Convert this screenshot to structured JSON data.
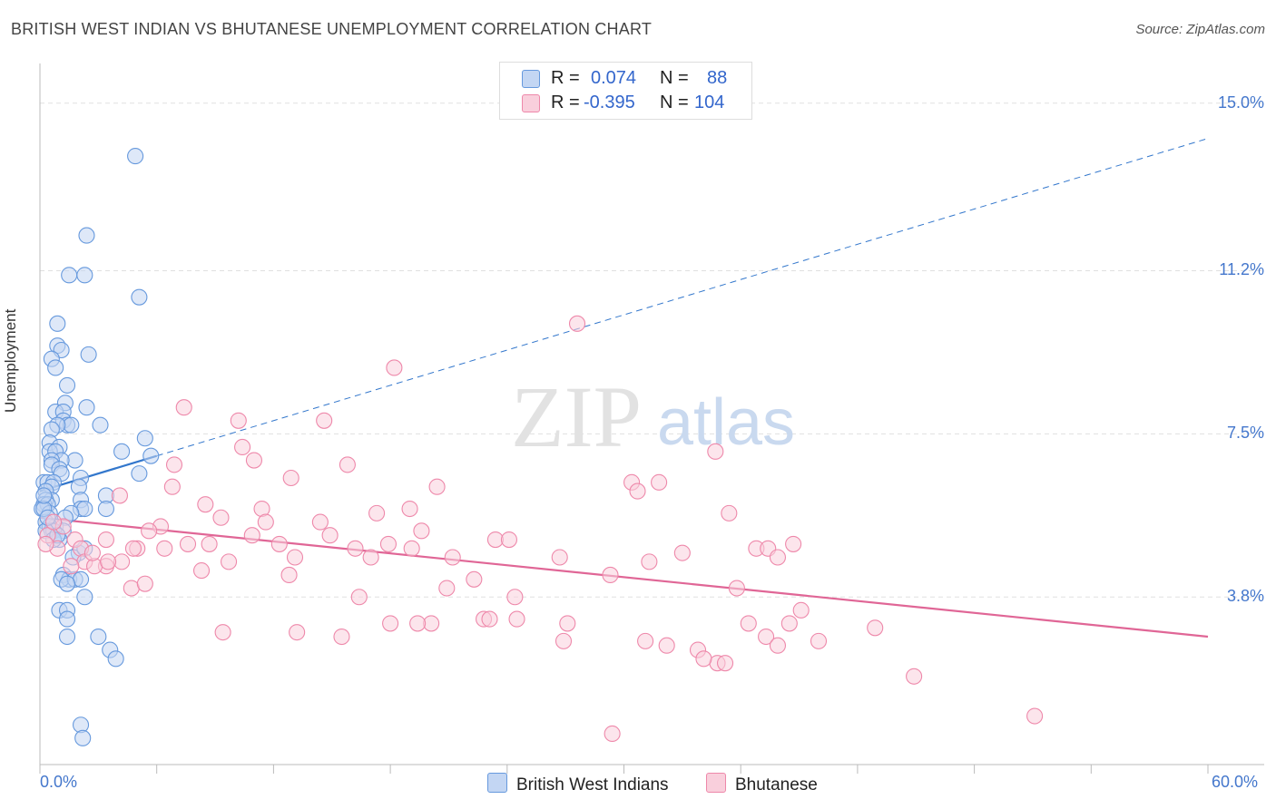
{
  "header": {
    "title": "BRITISH WEST INDIAN VS BHUTANESE UNEMPLOYMENT CORRELATION CHART",
    "source": "Source: ZipAtlas.com"
  },
  "watermark": {
    "zip": "ZIP",
    "atlas": "atlas"
  },
  "legend": {
    "r_label": "R =",
    "n_label": "N =",
    "rows": [
      {
        "name": "British West Indians",
        "r": "0.074",
        "n": "88",
        "color": "#6699dd"
      },
      {
        "name": "Bhutanese",
        "r": "-0.395",
        "n": "104",
        "color": "#ee88aa"
      }
    ]
  },
  "colors": {
    "blue": "#6699dd",
    "blue_line": "#3377cc",
    "pink": "#ee88aa",
    "pink_line": "#e06696",
    "tick_text": "#4477cc"
  },
  "chart_data": {
    "type": "scatter",
    "title": "BRITISH WEST INDIAN VS BHUTANESE UNEMPLOYMENT CORRELATION CHART",
    "xlabel": "",
    "ylabel": "Unemployment",
    "xlim": [
      0,
      60
    ],
    "ylim": [
      0,
      15.9
    ],
    "x_tick_labels": [
      "0.0%",
      "60.0%"
    ],
    "y_ticks": [
      {
        "value": 3.8,
        "label": "3.8%"
      },
      {
        "value": 7.5,
        "label": "7.5%"
      },
      {
        "value": 11.2,
        "label": "11.2%"
      },
      {
        "value": 15.0,
        "label": "15.0%"
      }
    ],
    "grid": true,
    "series": [
      {
        "name": "British West Indians",
        "color": "#6699dd",
        "r": 0.074,
        "n": 88,
        "trend": {
          "solid": [
            [
              0,
              6.2
            ],
            [
              6,
              7.0
            ]
          ],
          "dashed": [
            [
              6,
              7.0
            ],
            [
              60,
              14.2
            ]
          ]
        },
        "points": [
          [
            4.9,
            13.8
          ],
          [
            2.4,
            12.0
          ],
          [
            1.5,
            11.1
          ],
          [
            2.3,
            11.1
          ],
          [
            5.1,
            10.6
          ],
          [
            0.9,
            10.0
          ],
          [
            0.9,
            9.5
          ],
          [
            1.1,
            9.4
          ],
          [
            2.5,
            9.3
          ],
          [
            0.6,
            9.2
          ],
          [
            0.8,
            9.0
          ],
          [
            1.4,
            8.6
          ],
          [
            1.3,
            8.2
          ],
          [
            0.8,
            8.0
          ],
          [
            1.2,
            8.0
          ],
          [
            2.4,
            8.1
          ],
          [
            1.2,
            7.8
          ],
          [
            1.4,
            7.7
          ],
          [
            1.6,
            7.7
          ],
          [
            3.1,
            7.7
          ],
          [
            0.9,
            7.7
          ],
          [
            0.6,
            7.6
          ],
          [
            5.4,
            7.4
          ],
          [
            0.5,
            7.3
          ],
          [
            1.0,
            7.2
          ],
          [
            0.5,
            7.1
          ],
          [
            0.8,
            7.1
          ],
          [
            4.2,
            7.1
          ],
          [
            5.7,
            7.0
          ],
          [
            1.8,
            6.9
          ],
          [
            1.1,
            6.9
          ],
          [
            0.6,
            6.9
          ],
          [
            0.6,
            6.8
          ],
          [
            1.0,
            6.7
          ],
          [
            1.1,
            6.6
          ],
          [
            5.1,
            6.6
          ],
          [
            2.1,
            6.5
          ],
          [
            0.2,
            6.4
          ],
          [
            0.4,
            6.4
          ],
          [
            0.7,
            6.4
          ],
          [
            0.6,
            6.3
          ],
          [
            2.0,
            6.3
          ],
          [
            0.3,
            6.2
          ],
          [
            3.4,
            6.1
          ],
          [
            2.1,
            6.0
          ],
          [
            0.6,
            6.0
          ],
          [
            0.3,
            6.0
          ],
          [
            0.2,
            5.9
          ],
          [
            0.4,
            5.9
          ],
          [
            0.1,
            5.8
          ],
          [
            0.5,
            5.7
          ],
          [
            2.1,
            5.8
          ],
          [
            2.3,
            5.8
          ],
          [
            3.4,
            5.8
          ],
          [
            1.6,
            5.7
          ],
          [
            1.3,
            5.6
          ],
          [
            0.3,
            5.5
          ],
          [
            0.8,
            5.4
          ],
          [
            0.5,
            5.4
          ],
          [
            1.2,
            5.3
          ],
          [
            0.6,
            5.3
          ],
          [
            0.7,
            5.3
          ],
          [
            0.3,
            5.3
          ],
          [
            1.0,
            5.1
          ],
          [
            0.7,
            5.1
          ],
          [
            2.0,
            4.8
          ],
          [
            1.7,
            4.7
          ],
          [
            2.3,
            4.9
          ],
          [
            1.2,
            4.3
          ],
          [
            1.5,
            4.2
          ],
          [
            1.1,
            4.2
          ],
          [
            1.8,
            4.2
          ],
          [
            2.1,
            4.2
          ],
          [
            1.4,
            4.1
          ],
          [
            2.3,
            3.8
          ],
          [
            1.0,
            3.5
          ],
          [
            1.4,
            3.5
          ],
          [
            1.4,
            3.3
          ],
          [
            1.4,
            2.9
          ],
          [
            3.0,
            2.9
          ],
          [
            3.6,
            2.6
          ],
          [
            3.9,
            2.4
          ],
          [
            2.1,
            0.9
          ],
          [
            2.2,
            0.6
          ],
          [
            0.2,
            5.8
          ],
          [
            0.2,
            6.1
          ],
          [
            0.4,
            5.6
          ],
          [
            0.9,
            5.2
          ]
        ]
      },
      {
        "name": "Bhutanese",
        "color": "#ee88aa",
        "r": -0.395,
        "n": 104,
        "trend": {
          "solid": [
            [
              0,
              5.6
            ],
            [
              60,
              2.9
            ]
          ]
        },
        "points": [
          [
            27.6,
            10.0
          ],
          [
            18.2,
            9.0
          ],
          [
            7.4,
            8.1
          ],
          [
            10.2,
            7.8
          ],
          [
            14.6,
            7.8
          ],
          [
            10.4,
            7.2
          ],
          [
            34.7,
            7.1
          ],
          [
            11.0,
            6.9
          ],
          [
            15.8,
            6.8
          ],
          [
            6.9,
            6.8
          ],
          [
            12.9,
            6.5
          ],
          [
            30.4,
            6.4
          ],
          [
            31.8,
            6.4
          ],
          [
            6.8,
            6.3
          ],
          [
            20.4,
            6.3
          ],
          [
            30.7,
            6.2
          ],
          [
            4.1,
            6.1
          ],
          [
            8.5,
            5.9
          ],
          [
            11.4,
            5.8
          ],
          [
            19.0,
            5.8
          ],
          [
            17.3,
            5.7
          ],
          [
            9.3,
            5.6
          ],
          [
            35.4,
            5.7
          ],
          [
            14.4,
            5.5
          ],
          [
            11.6,
            5.5
          ],
          [
            19.6,
            5.3
          ],
          [
            6.2,
            5.4
          ],
          [
            5.6,
            5.3
          ],
          [
            10.9,
            5.2
          ],
          [
            14.9,
            5.2
          ],
          [
            23.4,
            5.1
          ],
          [
            24.1,
            5.1
          ],
          [
            3.4,
            5.1
          ],
          [
            7.6,
            5.0
          ],
          [
            8.7,
            5.0
          ],
          [
            12.3,
            5.0
          ],
          [
            17.9,
            5.0
          ],
          [
            1.8,
            5.1
          ],
          [
            2.1,
            4.9
          ],
          [
            5.0,
            4.9
          ],
          [
            6.4,
            4.9
          ],
          [
            16.2,
            4.9
          ],
          [
            19.1,
            4.9
          ],
          [
            36.8,
            4.9
          ],
          [
            37.4,
            4.9
          ],
          [
            38.7,
            5.0
          ],
          [
            33.0,
            4.8
          ],
          [
            37.9,
            4.7
          ],
          [
            26.7,
            4.7
          ],
          [
            21.2,
            4.7
          ],
          [
            13.1,
            4.7
          ],
          [
            2.3,
            4.6
          ],
          [
            4.2,
            4.6
          ],
          [
            9.7,
            4.6
          ],
          [
            3.4,
            4.5
          ],
          [
            17.0,
            4.7
          ],
          [
            1.6,
            4.5
          ],
          [
            8.3,
            4.4
          ],
          [
            12.8,
            4.3
          ],
          [
            22.3,
            4.2
          ],
          [
            29.3,
            4.3
          ],
          [
            31.3,
            4.6
          ],
          [
            20.9,
            4.0
          ],
          [
            4.7,
            4.0
          ],
          [
            5.4,
            4.1
          ],
          [
            35.8,
            4.0
          ],
          [
            16.4,
            3.8
          ],
          [
            24.4,
            3.8
          ],
          [
            39.1,
            3.5
          ],
          [
            22.8,
            3.3
          ],
          [
            23.1,
            3.3
          ],
          [
            20.1,
            3.2
          ],
          [
            24.5,
            3.3
          ],
          [
            18.0,
            3.2
          ],
          [
            19.4,
            3.2
          ],
          [
            27.1,
            3.2
          ],
          [
            36.4,
            3.2
          ],
          [
            38.5,
            3.2
          ],
          [
            9.4,
            3.0
          ],
          [
            13.2,
            3.0
          ],
          [
            15.5,
            2.9
          ],
          [
            37.3,
            2.9
          ],
          [
            40.0,
            2.8
          ],
          [
            42.9,
            3.1
          ],
          [
            26.9,
            2.8
          ],
          [
            32.2,
            2.7
          ],
          [
            31.1,
            2.8
          ],
          [
            37.9,
            2.7
          ],
          [
            33.8,
            2.6
          ],
          [
            34.8,
            2.3
          ],
          [
            35.2,
            2.3
          ],
          [
            44.9,
            2.0
          ],
          [
            51.1,
            1.1
          ],
          [
            29.4,
            0.7
          ],
          [
            0.4,
            5.2
          ],
          [
            0.9,
            4.9
          ],
          [
            1.2,
            5.4
          ],
          [
            0.3,
            5.0
          ],
          [
            2.8,
            4.5
          ],
          [
            3.5,
            4.6
          ],
          [
            0.7,
            5.5
          ],
          [
            4.8,
            4.9
          ],
          [
            2.7,
            4.8
          ],
          [
            34.1,
            2.4
          ]
        ]
      }
    ]
  }
}
